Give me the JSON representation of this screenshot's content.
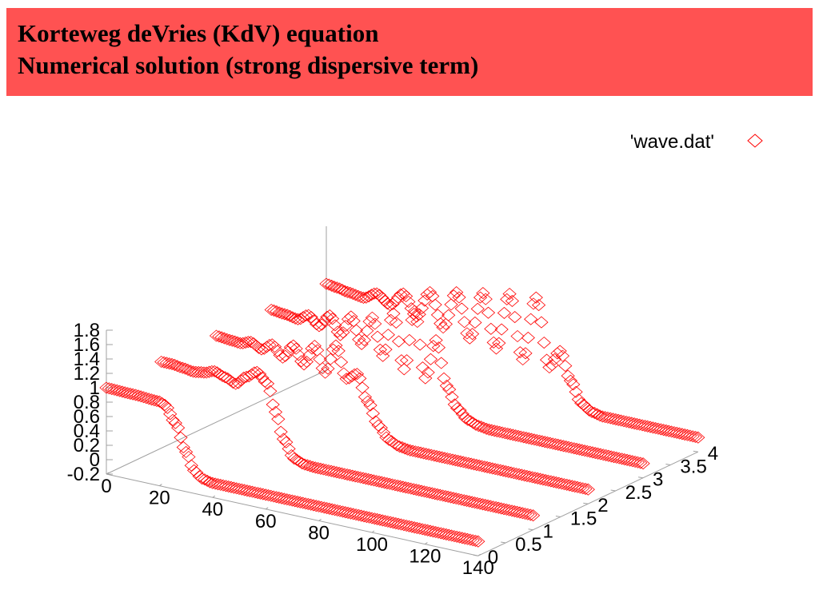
{
  "header": {
    "title_line1": "Korteweg deVries (KdV) equation",
    "title_line2": "Numerical solution (strong dispersive term)",
    "background_color": "#ff5252"
  },
  "chart_data": {
    "type": "scatter3d",
    "marker": "diamond",
    "series_color": "#ff0000",
    "legend": {
      "entries": [
        "'wave.dat'"
      ],
      "placement": "top-right"
    },
    "x_axis": {
      "range": [
        0,
        140
      ],
      "ticks": [
        "0",
        "20",
        "40",
        "60",
        "80",
        "100",
        "120",
        "140"
      ]
    },
    "y_axis": {
      "range": [
        0,
        4
      ],
      "ticks": [
        "0",
        "0.5",
        "1",
        "1.5",
        "2",
        "2.5",
        "3",
        "3.5",
        "4"
      ]
    },
    "z_axis": {
      "range": [
        -0.2,
        1.8
      ],
      "ticks": [
        "-0.2",
        "0",
        "0.2",
        "0.4",
        "0.6",
        "0.8",
        "1",
        "1.2",
        "1.4",
        "1.6",
        "1.8"
      ]
    },
    "x_step": 1,
    "series": [
      {
        "y": 0,
        "profile_x": [
          0,
          10,
          20,
          22,
          26,
          30,
          33,
          36,
          40,
          45,
          140
        ],
        "profile_z": [
          1,
          0.99,
          0.97,
          0.94,
          0.72,
          0.35,
          0.12,
          0.03,
          0,
          0,
          0
        ]
      },
      {
        "y": 1,
        "profile_x": [
          0,
          4,
          8,
          12,
          16,
          20,
          24,
          28,
          32,
          36,
          40,
          43,
          46,
          50,
          54,
          58,
          140
        ],
        "profile_z": [
          1,
          1,
          0.98,
          0.96,
          0.98,
          1.03,
          0.98,
          0.92,
          1.05,
          1.15,
          1.02,
          0.65,
          0.3,
          0.06,
          0.01,
          0,
          0
        ]
      },
      {
        "y": 2,
        "profile_x": [
          0,
          6,
          9,
          13,
          17,
          21,
          25,
          29,
          33,
          37,
          41,
          45,
          49,
          53,
          57,
          61,
          65,
          69,
          73,
          77,
          140
        ],
        "profile_z": [
          1,
          0.98,
          0.97,
          1.02,
          0.95,
          1.05,
          0.9,
          1.1,
          0.87,
          1.16,
          0.82,
          1.23,
          0.8,
          0.9,
          0.55,
          0.25,
          0.08,
          0.02,
          0,
          0,
          0
        ]
      },
      {
        "y": 3,
        "profile_x": [
          0,
          5,
          10,
          14,
          18,
          22,
          26,
          30,
          34,
          38,
          42,
          46,
          50,
          54,
          58,
          62,
          66,
          70,
          74,
          78,
          82,
          86,
          90,
          140
        ],
        "profile_z": [
          1,
          0.98,
          0.95,
          1.04,
          0.92,
          1.1,
          0.86,
          1.15,
          0.8,
          1.2,
          0.7,
          1.32,
          0.58,
          1.42,
          0.52,
          1.08,
          0.48,
          0.2,
          0.07,
          0.02,
          0,
          0,
          0,
          0
        ]
      },
      {
        "y": 4,
        "profile_x": [
          0,
          4,
          8,
          14,
          19,
          24,
          29,
          34,
          39,
          44,
          49,
          54,
          59,
          64,
          69,
          74,
          79,
          84,
          88,
          92,
          96,
          100,
          104,
          108,
          140
        ],
        "profile_z": [
          1,
          0.98,
          0.95,
          0.92,
          1.02,
          0.9,
          1.1,
          0.82,
          1.2,
          0.75,
          1.28,
          0.68,
          1.35,
          0.62,
          1.42,
          0.55,
          1.45,
          0.52,
          0.78,
          0.4,
          0.12,
          0.03,
          0,
          0,
          0
        ]
      }
    ]
  }
}
